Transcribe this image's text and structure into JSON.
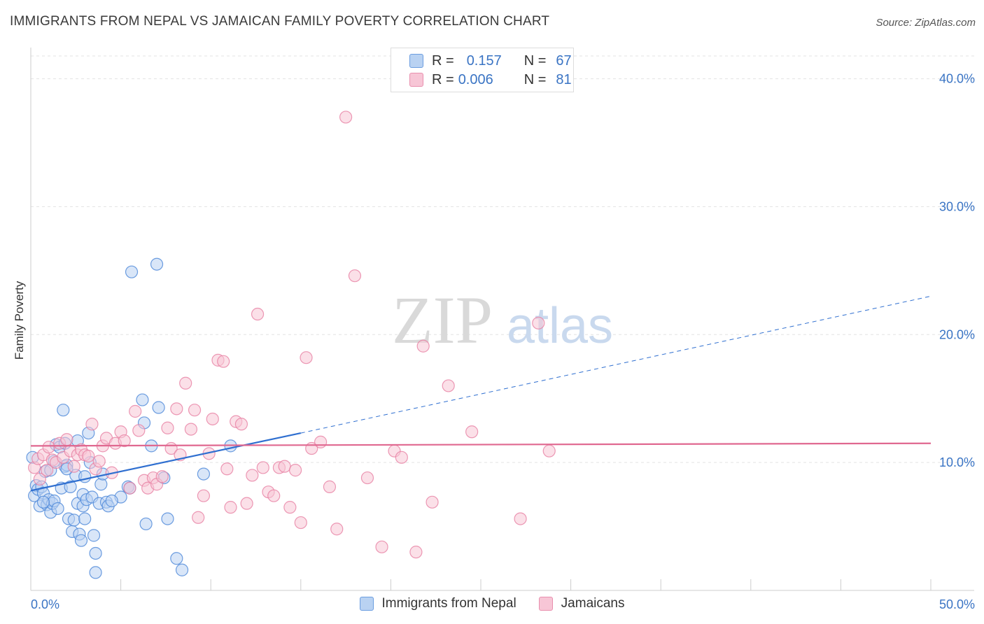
{
  "title": "IMMIGRANTS FROM NEPAL VS JAMAICAN FAMILY POVERTY CORRELATION CHART",
  "source": "Source: ZipAtlas.com",
  "watermark": {
    "zip": "ZIP",
    "atlas": "atlas"
  },
  "legend": {
    "r_label": "R =",
    "n_label": "N =",
    "series": [
      {
        "r": "0.157",
        "n": "67"
      },
      {
        "r": "0.006",
        "n": "81"
      }
    ]
  },
  "chart_data": {
    "type": "scatter",
    "title": "IMMIGRANTS FROM NEPAL VS JAMAICAN FAMILY POVERTY CORRELATION CHART",
    "xlabel": "",
    "ylabel": "Family Poverty",
    "xlim": [
      0,
      50
    ],
    "ylim": [
      0,
      42
    ],
    "x_tick_labels": [
      {
        "value": 0,
        "label": "0.0%"
      },
      {
        "value": 50,
        "label": "50.0%"
      }
    ],
    "y_tick_labels": [
      {
        "value": 10,
        "label": "10.0%"
      },
      {
        "value": 20,
        "label": "20.0%"
      },
      {
        "value": 30,
        "label": "30.0%"
      },
      {
        "value": 40,
        "label": "40.0%"
      }
    ],
    "legend_position": "top-center",
    "series": [
      {
        "name": "Immigrants from Nepal",
        "color": "#4a86d8",
        "fill": "#b9d2f2",
        "trend": {
          "x0": 0,
          "y0": 7.8,
          "x1": 15,
          "y1": 12.3,
          "dash_x1": 50,
          "dash_y1": 23.0,
          "color": "#2f6fd0"
        },
        "points": [
          [
            0.1,
            10.4
          ],
          [
            0.2,
            7.4
          ],
          [
            0.3,
            8.2
          ],
          [
            0.4,
            7.9
          ],
          [
            0.5,
            6.6
          ],
          [
            0.6,
            8.1
          ],
          [
            0.7,
            7.6
          ],
          [
            0.8,
            9.3
          ],
          [
            0.9,
            6.7
          ],
          [
            1.0,
            7.1
          ],
          [
            1.1,
            6.1
          ],
          [
            1.1,
            9.4
          ],
          [
            1.2,
            6.8
          ],
          [
            1.3,
            7.0
          ],
          [
            1.4,
            11.4
          ],
          [
            1.5,
            6.4
          ],
          [
            1.6,
            11.2
          ],
          [
            1.7,
            8.0
          ],
          [
            1.8,
            14.1
          ],
          [
            1.9,
            11.5
          ],
          [
            1.9,
            9.7
          ],
          [
            2.0,
            9.8
          ],
          [
            2.1,
            5.6
          ],
          [
            2.2,
            8.1
          ],
          [
            2.3,
            4.6
          ],
          [
            2.4,
            5.5
          ],
          [
            2.5,
            9.0
          ],
          [
            2.6,
            11.7
          ],
          [
            2.6,
            6.8
          ],
          [
            2.7,
            4.4
          ],
          [
            2.8,
            3.9
          ],
          [
            2.9,
            7.5
          ],
          [
            2.9,
            6.6
          ],
          [
            3.0,
            5.6
          ],
          [
            3.0,
            8.9
          ],
          [
            3.1,
            7.1
          ],
          [
            3.2,
            12.3
          ],
          [
            3.3,
            10.0
          ],
          [
            3.4,
            7.3
          ],
          [
            3.5,
            4.3
          ],
          [
            3.6,
            1.4
          ],
          [
            3.6,
            2.9
          ],
          [
            3.8,
            6.8
          ],
          [
            3.9,
            8.3
          ],
          [
            4.0,
            9.1
          ],
          [
            4.2,
            6.9
          ],
          [
            4.3,
            6.6
          ],
          [
            5.0,
            7.3
          ],
          [
            5.4,
            8.1
          ],
          [
            5.6,
            24.9
          ],
          [
            6.2,
            14.9
          ],
          [
            6.4,
            5.2
          ],
          [
            6.7,
            11.3
          ],
          [
            7.1,
            14.3
          ],
          [
            7.4,
            8.8
          ],
          [
            7.6,
            5.6
          ],
          [
            8.1,
            2.5
          ],
          [
            8.4,
            1.6
          ],
          [
            9.6,
            9.1
          ],
          [
            11.1,
            11.3
          ],
          [
            5.5,
            8.0
          ],
          [
            6.3,
            13.1
          ],
          [
            7.0,
            25.5
          ],
          [
            1.3,
            10.1
          ],
          [
            2.0,
            9.5
          ],
          [
            0.7,
            6.9
          ],
          [
            4.5,
            7.0
          ]
        ]
      },
      {
        "name": "Jamaicans",
        "color": "#e77fa3",
        "fill": "#f7c6d6",
        "trend": {
          "x0": 0,
          "y0": 11.3,
          "x1": 50,
          "y1": 11.5,
          "color": "#e06890"
        },
        "points": [
          [
            0.2,
            9.6
          ],
          [
            0.4,
            10.3
          ],
          [
            0.5,
            8.7
          ],
          [
            0.7,
            10.6
          ],
          [
            0.9,
            9.4
          ],
          [
            1.0,
            11.2
          ],
          [
            1.2,
            10.2
          ],
          [
            1.4,
            10.0
          ],
          [
            1.6,
            11.5
          ],
          [
            1.8,
            10.4
          ],
          [
            2.0,
            11.8
          ],
          [
            2.2,
            10.9
          ],
          [
            2.4,
            9.7
          ],
          [
            2.6,
            10.6
          ],
          [
            2.8,
            11.0
          ],
          [
            3.0,
            10.6
          ],
          [
            3.2,
            10.5
          ],
          [
            3.4,
            13.0
          ],
          [
            3.6,
            9.5
          ],
          [
            3.8,
            10.1
          ],
          [
            4.0,
            11.3
          ],
          [
            4.2,
            11.9
          ],
          [
            4.5,
            9.2
          ],
          [
            4.7,
            11.5
          ],
          [
            5.0,
            12.4
          ],
          [
            5.2,
            11.7
          ],
          [
            5.5,
            8.0
          ],
          [
            5.8,
            14.0
          ],
          [
            6.0,
            12.5
          ],
          [
            6.3,
            8.6
          ],
          [
            6.5,
            8.0
          ],
          [
            6.8,
            8.8
          ],
          [
            7.0,
            8.3
          ],
          [
            7.3,
            8.9
          ],
          [
            7.6,
            12.7
          ],
          [
            7.8,
            11.1
          ],
          [
            8.1,
            14.2
          ],
          [
            8.3,
            10.6
          ],
          [
            8.6,
            16.2
          ],
          [
            8.9,
            12.6
          ],
          [
            9.1,
            14.1
          ],
          [
            9.3,
            5.7
          ],
          [
            9.6,
            7.4
          ],
          [
            9.9,
            10.7
          ],
          [
            10.1,
            13.4
          ],
          [
            10.4,
            18.0
          ],
          [
            10.7,
            17.9
          ],
          [
            10.9,
            9.5
          ],
          [
            11.1,
            6.5
          ],
          [
            11.4,
            13.2
          ],
          [
            11.7,
            13.0
          ],
          [
            12.0,
            6.8
          ],
          [
            12.3,
            9.0
          ],
          [
            12.6,
            21.6
          ],
          [
            12.9,
            9.6
          ],
          [
            13.2,
            7.7
          ],
          [
            13.5,
            7.4
          ],
          [
            13.8,
            9.6
          ],
          [
            14.1,
            9.7
          ],
          [
            14.4,
            6.5
          ],
          [
            14.7,
            9.4
          ],
          [
            15.0,
            5.3
          ],
          [
            15.3,
            18.2
          ],
          [
            15.6,
            11.1
          ],
          [
            16.1,
            11.6
          ],
          [
            16.6,
            8.1
          ],
          [
            17.0,
            4.8
          ],
          [
            17.5,
            37.0
          ],
          [
            18.0,
            24.6
          ],
          [
            18.7,
            8.8
          ],
          [
            19.5,
            3.4
          ],
          [
            20.2,
            10.9
          ],
          [
            20.6,
            10.4
          ],
          [
            21.4,
            3.0
          ],
          [
            21.8,
            19.1
          ],
          [
            22.3,
            6.9
          ],
          [
            23.2,
            16.0
          ],
          [
            24.5,
            12.4
          ],
          [
            27.2,
            5.6
          ],
          [
            28.2,
            20.9
          ],
          [
            28.8,
            10.9
          ]
        ]
      }
    ]
  }
}
